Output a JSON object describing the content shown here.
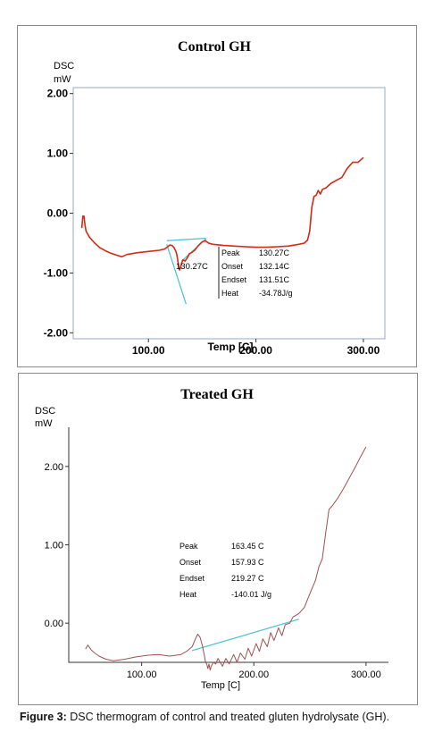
{
  "chart_data": [
    {
      "type": "line",
      "title": "Control GH",
      "ylabel_line1": "DSC",
      "ylabel_line2": "mW",
      "xlabel": "Temp  [C]",
      "xlim": [
        30,
        320
      ],
      "ylim": [
        -2.1,
        2.1
      ],
      "x_ticks": [
        "100.00",
        "200.00",
        "300.00"
      ],
      "x_tick_values": [
        100,
        200,
        300
      ],
      "y_ticks": [
        "2.00",
        "1.00",
        "0.00",
        "-1.00",
        "-2.00"
      ],
      "y_tick_values": [
        2,
        1,
        0,
        -1,
        -2
      ],
      "series": [
        {
          "color": "#d42a14",
          "x": [
            38,
            39,
            40,
            41,
            42,
            45,
            50,
            55,
            60,
            65,
            70,
            75,
            80,
            90,
            100,
            110,
            115,
            118,
            120,
            122,
            124,
            126,
            127,
            128,
            129,
            130,
            131,
            132,
            134,
            136,
            138,
            140,
            143,
            146,
            150,
            153,
            156,
            160,
            170,
            180,
            190,
            200,
            210,
            220,
            230,
            240,
            245,
            248,
            250,
            252,
            254,
            256,
            258,
            260,
            262,
            265,
            270,
            275,
            280,
            285,
            290,
            295,
            300
          ],
          "y": [
            -0.25,
            -0.05,
            -0.05,
            -0.2,
            -0.3,
            -0.4,
            -0.5,
            -0.58,
            -0.63,
            -0.67,
            -0.7,
            -0.73,
            -0.69,
            -0.66,
            -0.64,
            -0.62,
            -0.6,
            -0.56,
            -0.53,
            -0.54,
            -0.58,
            -0.66,
            -0.75,
            -0.88,
            -0.95,
            -0.9,
            -0.83,
            -0.78,
            -0.8,
            -0.75,
            -0.68,
            -0.66,
            -0.62,
            -0.55,
            -0.48,
            -0.46,
            -0.5,
            -0.52,
            -0.54,
            -0.55,
            -0.56,
            -0.57,
            -0.57,
            -0.56,
            -0.55,
            -0.52,
            -0.5,
            -0.45,
            -0.3,
            0.1,
            0.28,
            0.3,
            0.38,
            0.32,
            0.4,
            0.42,
            0.5,
            0.55,
            0.6,
            0.75,
            0.85,
            0.85,
            0.93
          ]
        }
      ],
      "baseline_color": "#46c2d2",
      "baselines": [
        {
          "x": [
            117,
            135
          ],
          "y": [
            -0.52,
            -1.52
          ]
        },
        {
          "x": [
            117,
            153
          ],
          "y": [
            -0.46,
            -0.42
          ]
        },
        {
          "x": [
            131,
            154
          ],
          "y": [
            -0.8,
            -0.42
          ]
        }
      ],
      "peak_label": "130.27C",
      "results": [
        {
          "key": "Peak",
          "value": "130.27C"
        },
        {
          "key": "Onset",
          "value": "132.14C"
        },
        {
          "key": "Endset",
          "value": "131.51C"
        },
        {
          "key": "Heat",
          "value": "-34.78J/g"
        }
      ]
    },
    {
      "type": "line",
      "title": "Treated GH",
      "ylabel_line1": "DSC",
      "ylabel_line2": "mW",
      "xlabel": "Temp  [C]",
      "xlim": [
        35,
        320
      ],
      "ylim": [
        -0.5,
        2.5
      ],
      "x_ticks": [
        "100.00",
        "200.00",
        "300.00"
      ],
      "x_tick_values": [
        100,
        200,
        300
      ],
      "y_ticks": [
        "2.00",
        "1.00",
        "0.00"
      ],
      "y_tick_values": [
        2,
        1,
        0
      ],
      "series": [
        {
          "color": "#a05050",
          "x": [
            50,
            52,
            55,
            58,
            62,
            68,
            75,
            85,
            95,
            105,
            115,
            125,
            135,
            140,
            145,
            148,
            150,
            152,
            154,
            156,
            157,
            158,
            159,
            160,
            161,
            162,
            164,
            166,
            168,
            172,
            175,
            178,
            182,
            185,
            188,
            192,
            195,
            198,
            202,
            205,
            208,
            212,
            215,
            218,
            222,
            225,
            228,
            232,
            235,
            240,
            245,
            250,
            255,
            258,
            261,
            264,
            267,
            270,
            275,
            280,
            285,
            290,
            295,
            300
          ],
          "y": [
            -0.33,
            -0.28,
            -0.34,
            -0.38,
            -0.42,
            -0.46,
            -0.48,
            -0.46,
            -0.43,
            -0.41,
            -0.4,
            -0.42,
            -0.4,
            -0.36,
            -0.3,
            -0.2,
            -0.14,
            -0.18,
            -0.28,
            -0.42,
            -0.5,
            -0.52,
            -0.58,
            -0.52,
            -0.6,
            -0.55,
            -0.5,
            -0.52,
            -0.45,
            -0.55,
            -0.45,
            -0.52,
            -0.4,
            -0.5,
            -0.38,
            -0.46,
            -0.32,
            -0.42,
            -0.26,
            -0.36,
            -0.2,
            -0.3,
            -0.12,
            -0.22,
            -0.06,
            -0.16,
            -0.02,
            0.0,
            0.08,
            0.12,
            0.2,
            0.38,
            0.55,
            0.72,
            0.82,
            1.15,
            1.45,
            1.5,
            1.6,
            1.72,
            1.85,
            1.98,
            2.12,
            2.25
          ]
        }
      ],
      "baseline_color": "#46c2d2",
      "baselines": [
        {
          "x": [
            145,
            240
          ],
          "y": [
            -0.35,
            0.05
          ]
        }
      ],
      "results": [
        {
          "key": "Peak",
          "value": "163.45 C"
        },
        {
          "key": "Onset",
          "value": "157.93 C"
        },
        {
          "key": "Endset",
          "value": "219.27 C"
        },
        {
          "key": "Heat",
          "value": "-140.01 J/g"
        }
      ]
    }
  ],
  "caption": {
    "label": "Figure 3:",
    "text": " DSC thermogram of control and treated gluten hydrolysate (GH)."
  }
}
